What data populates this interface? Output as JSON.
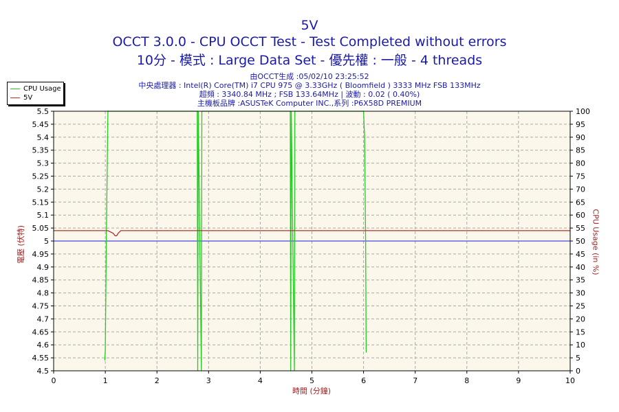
{
  "chart_data": {
    "type": "line",
    "title": "5V",
    "subtitle_lines": [
      "OCCT 3.0.0 - CPU OCCT Test - Test Completed without errors",
      "10分 - 模式 : Large Data Set - 優先權 : 一般 - 4 threads"
    ],
    "info_lines": [
      "由OCCT生成 :05/02/10 23:25:52",
      "中央處理器 : Intel(R) Core(TM) i7 CPU 975 @ 3.33GHz ( Bloomfield ) 3333 MHz FSB 133MHz",
      "超頻 : 3340.84 MHz ; FSB 133.64MHz | 波動 : 0.02 ( 0.40%)",
      "主機板品牌 :ASUSTeK Computer INC.,系列 :P6X58D PREMIUM"
    ],
    "xlabel": "時間 (分鐘)",
    "ylabel_left": "電壓 (伏特)",
    "ylabel_right": "CPU Usage (in %)",
    "xlim": [
      0,
      10
    ],
    "ylim_left": [
      4.5,
      5.5
    ],
    "ylim_right": [
      0,
      100
    ],
    "x_ticks": [
      "0",
      "1",
      "2",
      "3",
      "4",
      "5",
      "6",
      "7",
      "8",
      "9",
      "10"
    ],
    "y_left_ticks": [
      "4.5",
      "4.55",
      "4.6",
      "4.65",
      "4.7",
      "4.75",
      "4.8",
      "4.85",
      "4.9",
      "4.95",
      "5",
      "5.05",
      "5.1",
      "5.15",
      "5.2",
      "5.25",
      "5.3",
      "5.35",
      "5.4",
      "5.45",
      "5.5"
    ],
    "y_right_ticks": [
      "0",
      "5",
      "10",
      "15",
      "20",
      "25",
      "30",
      "35",
      "40",
      "45",
      "50",
      "55",
      "60",
      "65",
      "70",
      "75",
      "80",
      "85",
      "90",
      "95",
      "100"
    ],
    "grid": true,
    "legend_position": "top-left outside",
    "reference_value": 5.0,
    "series": [
      {
        "name": "CPU Usage",
        "axis": "right",
        "color": "#22cc22",
        "x": [
          0.99,
          1.0,
          1.02,
          1.05,
          1.06,
          2.78,
          2.79,
          2.8,
          2.86,
          2.87,
          4.58,
          4.59,
          4.6,
          4.66,
          4.67,
          6.0,
          6.02,
          6.04,
          6.05
        ],
        "values": [
          4,
          8,
          50,
          100,
          100,
          100,
          0,
          100,
          0,
          100,
          100,
          0,
          100,
          0,
          100,
          100,
          90,
          50,
          7
        ]
      },
      {
        "name": "5V",
        "axis": "left",
        "color": "#b03030",
        "x": [
          0,
          1.05,
          1.15,
          1.19,
          1.22,
          1.25,
          1.3,
          10
        ],
        "values": [
          5.04,
          5.04,
          5.03,
          5.02,
          5.02,
          5.03,
          5.04,
          5.04
        ]
      }
    ],
    "colors": {
      "plot_bg": "#fbf7ea",
      "grid": "#a9a9a9",
      "title": "#1a1aa8",
      "axis_label": "#a02020",
      "reference_line": "#1a1ae0"
    }
  }
}
